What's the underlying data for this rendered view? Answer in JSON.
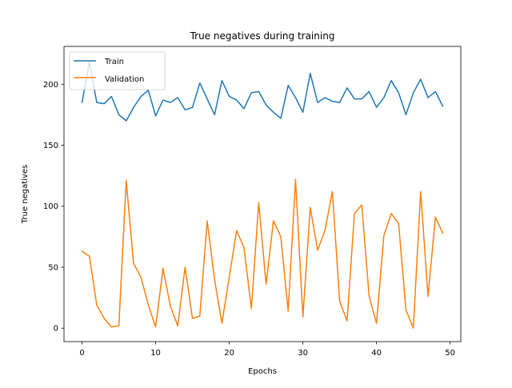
{
  "chart_data": {
    "type": "line",
    "title": "True negatives during training",
    "xlabel": "Epochs",
    "ylabel": "True negatives",
    "xlim": [
      -2.45,
      51.45
    ],
    "ylim": [
      -11,
      231
    ],
    "xticks": [
      0,
      10,
      20,
      30,
      40,
      50
    ],
    "yticks": [
      0,
      50,
      100,
      150,
      200
    ],
    "grid": false,
    "legend_position": "top-left",
    "x": [
      0,
      1,
      2,
      3,
      4,
      5,
      6,
      7,
      8,
      9,
      10,
      11,
      12,
      13,
      14,
      15,
      16,
      17,
      18,
      19,
      20,
      21,
      22,
      23,
      24,
      25,
      26,
      27,
      28,
      29,
      30,
      31,
      32,
      33,
      34,
      35,
      36,
      37,
      38,
      39,
      40,
      41,
      42,
      43,
      44,
      45,
      46,
      47,
      48,
      49
    ],
    "series": [
      {
        "name": "Train",
        "color": "#1f77b4",
        "values": [
          185,
          218,
          185,
          184,
          190,
          175,
          170,
          181,
          190,
          195,
          174,
          187,
          185,
          189,
          179,
          181,
          201,
          188,
          175,
          203,
          190,
          187,
          180,
          193,
          194,
          183,
          177,
          172,
          199,
          189,
          177,
          209,
          185,
          189,
          186,
          185,
          197,
          188,
          188,
          194,
          181,
          189,
          203,
          193,
          175,
          193,
          204,
          189,
          194,
          182
        ]
      },
      {
        "name": "Validation",
        "color": "#ff7f0e",
        "values": [
          63,
          59,
          19,
          8,
          1,
          2,
          121,
          53,
          42,
          19,
          1,
          49,
          18,
          2,
          50,
          8,
          10,
          88,
          40,
          4,
          42,
          80,
          66,
          16,
          103,
          36,
          88,
          75,
          14,
          122,
          9,
          99,
          64,
          80,
          112,
          22,
          6,
          94,
          101,
          26,
          4,
          76,
          94,
          86,
          15,
          0,
          112,
          26,
          91,
          78
        ]
      }
    ]
  }
}
